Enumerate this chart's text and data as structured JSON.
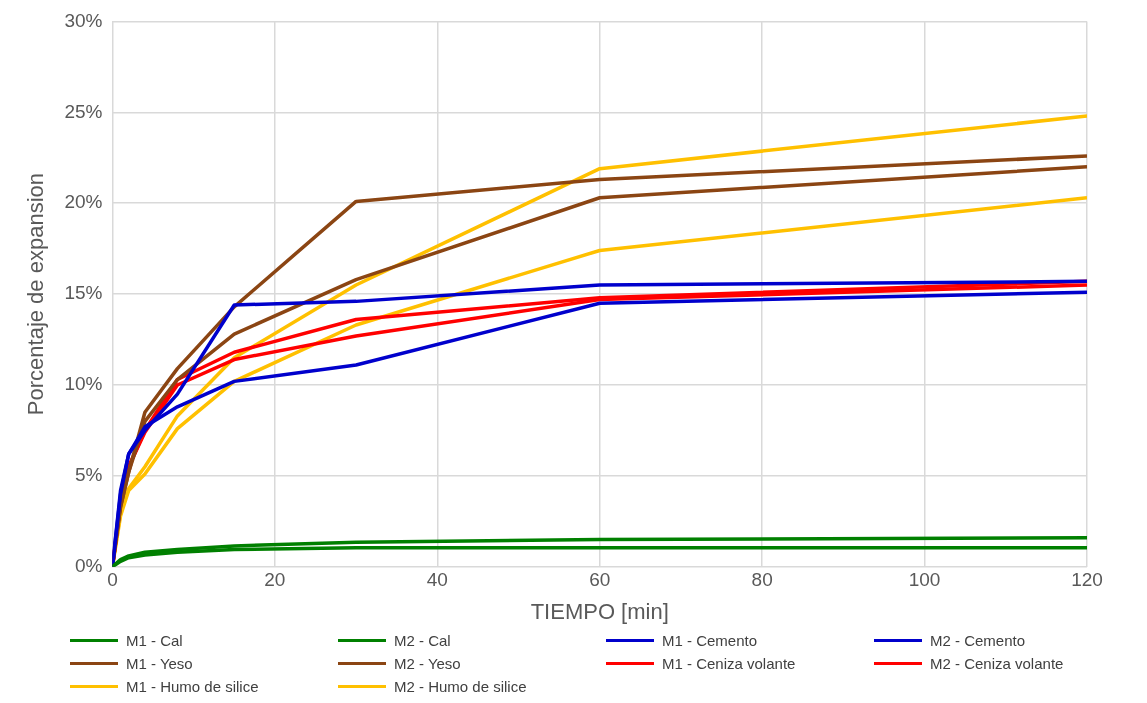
{
  "chart_data": {
    "type": "line",
    "xlabel": "TIEMPO [min]",
    "ylabel": "Porcentaje de expansion",
    "x": [
      0,
      1,
      2,
      4,
      8,
      15,
      30,
      60,
      120
    ],
    "xlim": [
      0,
      120
    ],
    "xticks": [
      0,
      20,
      40,
      60,
      80,
      100,
      120
    ],
    "ylim": [
      0,
      30
    ],
    "yticks": [
      {
        "value": 0,
        "label": "0%"
      },
      {
        "value": 5,
        "label": "5%"
      },
      {
        "value": 10,
        "label": "10%"
      },
      {
        "value": 15,
        "label": "15%"
      },
      {
        "value": 20,
        "label": "20%"
      },
      {
        "value": 25,
        "label": "25%"
      },
      {
        "value": 30,
        "label": "30%"
      }
    ],
    "grid": true,
    "legend": "bottom",
    "marker": "none",
    "line_style": "solid",
    "series": [
      {
        "name": "M1 - Cal",
        "color": "#008000",
        "values": [
          0,
          0.4,
          0.6,
          0.8,
          0.95,
          1.15,
          1.35,
          1.5,
          1.6
        ]
      },
      {
        "name": "M2 - Cal",
        "color": "#008000",
        "values": [
          0,
          0.3,
          0.5,
          0.65,
          0.8,
          0.95,
          1.05,
          1.05,
          1.05
        ]
      },
      {
        "name": "M1 - Cemento",
        "color": "#0000cc",
        "values": [
          0,
          4.0,
          6.2,
          7.5,
          9.5,
          14.4,
          14.6,
          15.5,
          15.7
        ]
      },
      {
        "name": "M2 - Cemento",
        "color": "#0000cc",
        "values": [
          0,
          4.2,
          6.2,
          7.7,
          8.8,
          10.2,
          11.1,
          14.5,
          15.1
        ]
      },
      {
        "name": "M1 - Yeso",
        "color": "#8b4513",
        "values": [
          0,
          3.3,
          5.2,
          8.5,
          10.9,
          14.3,
          20.1,
          21.3,
          22.6
        ]
      },
      {
        "name": "M2 - Yeso",
        "color": "#8b4513",
        "values": [
          0,
          3.3,
          5.2,
          8.0,
          10.3,
          12.8,
          15.8,
          20.3,
          22.0
        ]
      },
      {
        "name": "M1 - Ceniza volante",
        "color": "#ff0000",
        "values": [
          0,
          3.5,
          5.5,
          7.5,
          10.3,
          11.8,
          13.6,
          14.8,
          15.7
        ]
      },
      {
        "name": "M2 - Ceniza volante",
        "color": "#ff0000",
        "values": [
          0,
          3.5,
          5.5,
          7.4,
          10.0,
          11.4,
          12.7,
          14.7,
          15.5
        ]
      },
      {
        "name": "M1 - Humo de silice",
        "color": "#ffc000",
        "values": [
          0,
          3.0,
          4.3,
          5.5,
          8.3,
          11.5,
          15.5,
          21.9,
          24.8
        ]
      },
      {
        "name": "M2 - Humo de silice",
        "color": "#ffc000",
        "values": [
          0,
          2.8,
          4.2,
          5.1,
          7.6,
          10.2,
          13.3,
          17.4,
          20.3
        ]
      }
    ]
  }
}
